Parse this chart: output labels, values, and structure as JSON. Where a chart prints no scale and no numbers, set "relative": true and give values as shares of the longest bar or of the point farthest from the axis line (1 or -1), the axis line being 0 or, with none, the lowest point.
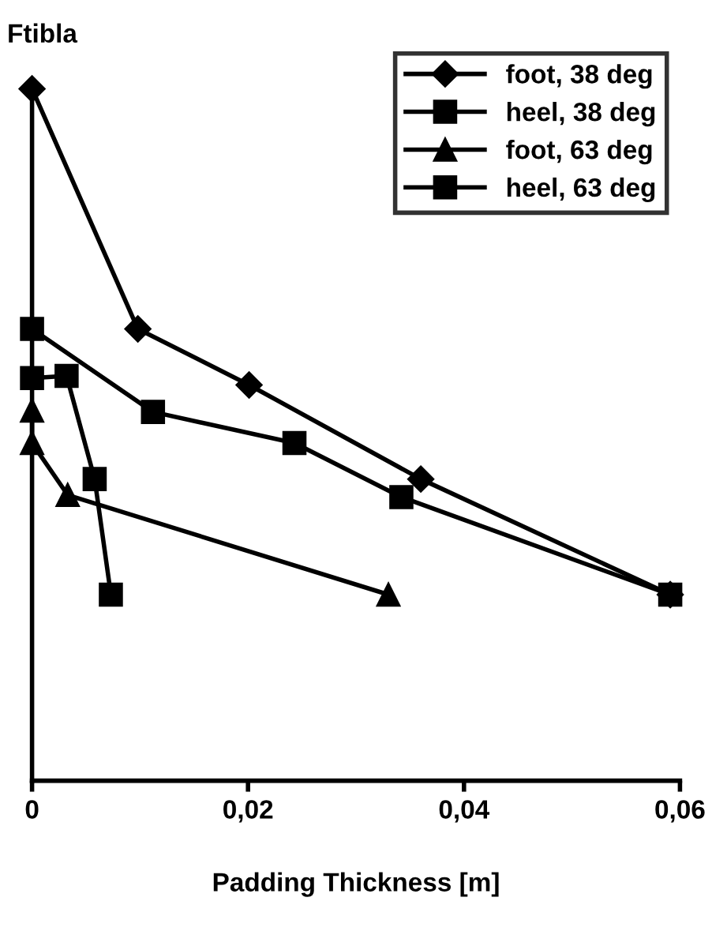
{
  "chart_data": {
    "type": "line",
    "ylabel": "Ftibla",
    "xlabel": "Padding Thickness [m]",
    "relative": true,
    "xlim": [
      0,
      0.06
    ],
    "xticks": [
      0,
      {
        "value": 0.02,
        "label": "0,02"
      },
      {
        "value": 0.04,
        "label": "0,04"
      },
      {
        "value": 0.06,
        "label": "0,06"
      }
    ],
    "legend": "top right",
    "grid": false,
    "tick_labels": "x",
    "series": [
      {
        "name": "foot, 38 deg",
        "color": "#000000",
        "marker": "diamond",
        "x": [
          0,
          0.0098,
          0.0201,
          0.036,
          0.0591
        ],
        "values": [
          1,
          0.653,
          0.572,
          0.436,
          0.269
        ]
      },
      {
        "name": "heel, 38 deg",
        "color": "#000000",
        "marker": "square",
        "x": [
          0,
          0.0112,
          0.0243,
          0.0342,
          0.0591
        ],
        "values": [
          0.653,
          0.533,
          0.488,
          0.41,
          0.269
        ]
      },
      {
        "name": "foot, 63 deg",
        "color": "#000000",
        "marker": "triangle",
        "x": [
          0,
          0,
          0.0033,
          0.033
        ],
        "values": [
          0.535,
          0.488,
          0.413,
          0.269
        ]
      },
      {
        "name": "heel, 63 deg",
        "color": "#000000",
        "marker": "square",
        "x": [
          0,
          0.0032,
          0.0058,
          0.0073
        ],
        "values": [
          0.582,
          0.585,
          0.436,
          0.269
        ]
      }
    ]
  }
}
